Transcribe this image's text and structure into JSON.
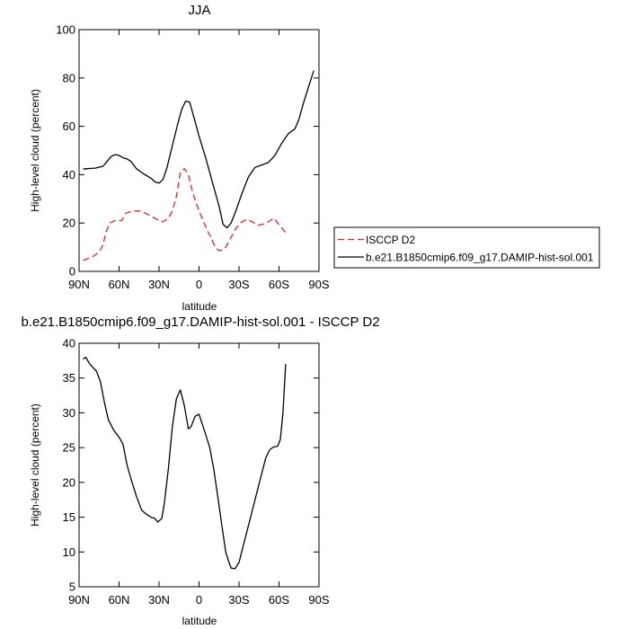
{
  "chart_data": [
    {
      "type": "line",
      "title": "JJA",
      "xlabel": "latitude",
      "ylabel": "High-level cloud (percent)",
      "xlim": [
        90,
        -90
      ],
      "ylim": [
        0,
        100
      ],
      "x_ticks": [
        90,
        60,
        30,
        0,
        -30,
        -60,
        -90
      ],
      "x_tick_labels": [
        "90N",
        "60N",
        "30N",
        "0",
        "30S",
        "60S",
        "90S"
      ],
      "y_ticks": [
        0,
        20,
        40,
        60,
        80,
        100
      ],
      "y_tick_labels": [
        "0",
        "20",
        "40",
        "60",
        "80",
        "100"
      ],
      "legend_position": "right, outside plot",
      "series": [
        {
          "name": "ISCCP D2",
          "color": "#e8222a",
          "dash": "dashed",
          "x": [
            87,
            80,
            75,
            72,
            70,
            67,
            63,
            58,
            55,
            50,
            45,
            40,
            35,
            30,
            27,
            23,
            20,
            17,
            14,
            11,
            8,
            5,
            2,
            0,
            -3,
            -6,
            -9,
            -12,
            -15,
            -18,
            -20,
            -22,
            -25,
            -28,
            -32,
            -36,
            -40,
            -44,
            -48,
            -52,
            -56,
            -59,
            -62,
            -65
          ],
          "y": [
            4.5,
            6,
            8,
            11,
            16,
            20,
            21,
            21,
            24,
            25,
            25,
            24,
            22.5,
            21,
            20.5,
            22,
            25,
            31,
            41,
            42.5,
            40,
            33,
            28,
            25,
            21,
            17,
            14,
            10,
            8.5,
            9,
            10,
            12,
            15,
            18,
            20.5,
            21.5,
            20.5,
            19,
            19.5,
            20.5,
            22,
            20,
            18,
            16
          ]
        },
        {
          "name": "b.e21.B1850cmip6.f09_g17.DAMIP-hist-sol.001",
          "color": "#000000",
          "dash": "solid",
          "x": [
            87,
            84,
            78,
            72,
            69,
            66,
            63,
            60,
            57,
            54,
            51,
            47,
            42,
            36,
            33,
            30,
            27,
            24,
            20,
            16,
            13,
            10,
            7,
            4,
            0,
            -5,
            -10,
            -15,
            -18,
            -21,
            -24,
            -28,
            -32,
            -37,
            -42,
            -47,
            -52,
            -57,
            -62,
            -67,
            -72,
            -75,
            -78,
            -82,
            -86
          ],
          "y": [
            42.3,
            42.5,
            42.7,
            43.5,
            45.5,
            47.5,
            48.3,
            48,
            47,
            46.5,
            45.5,
            42.5,
            40.5,
            38.5,
            37,
            36.5,
            38,
            43,
            52,
            61,
            67,
            70.5,
            70,
            64,
            56,
            47,
            37,
            27,
            19.5,
            18,
            20,
            25.5,
            32,
            39,
            43,
            44,
            45,
            48,
            53,
            57,
            59,
            63,
            69,
            76,
            83
          ]
        }
      ]
    },
    {
      "type": "line",
      "title": "b.e21.B1850cmip6.f09_g17.DAMIP-hist-sol.001 - ISCCP D2",
      "xlabel": "latitude",
      "ylabel": "High-level cloud (percent)",
      "xlim": [
        90,
        -90
      ],
      "ylim": [
        5,
        40
      ],
      "x_ticks": [
        90,
        60,
        30,
        0,
        -30,
        -60,
        -90
      ],
      "x_tick_labels": [
        "90N",
        "60N",
        "30N",
        "0",
        "30S",
        "60S",
        "90S"
      ],
      "y_ticks": [
        5,
        10,
        15,
        20,
        25,
        30,
        35,
        40
      ],
      "y_tick_labels": [
        "5",
        "10",
        "15",
        "20",
        "25",
        "30",
        "35",
        "40"
      ],
      "series": [
        {
          "color": "#000000",
          "dash": "solid",
          "x": [
            87,
            85,
            82,
            77,
            74,
            71,
            68,
            64,
            60,
            57,
            54,
            51,
            47,
            43,
            40,
            36,
            33,
            31,
            28,
            26,
            23,
            20,
            17,
            14,
            11,
            8,
            6,
            3,
            0,
            -4,
            -8,
            -11,
            -14,
            -17,
            -20,
            -22,
            -24,
            -27,
            -30,
            -34,
            -38,
            -42,
            -46,
            -50,
            -53,
            -56,
            -59,
            -61,
            -63,
            -65
          ],
          "y": [
            37.7,
            38,
            37,
            36,
            34.5,
            31.5,
            29,
            27.5,
            26.5,
            25.5,
            22.5,
            20.5,
            18,
            16,
            15.5,
            15,
            14.8,
            14.3,
            14.8,
            17,
            22,
            28,
            32,
            33.3,
            31,
            27.7,
            28,
            29.5,
            29.8,
            27.5,
            25,
            22,
            18,
            14,
            10,
            8.8,
            7.7,
            7.6,
            8.5,
            11.5,
            14.5,
            17.5,
            20.5,
            23.5,
            24.7,
            25.1,
            25.2,
            26.2,
            30,
            37
          ]
        }
      ]
    }
  ]
}
